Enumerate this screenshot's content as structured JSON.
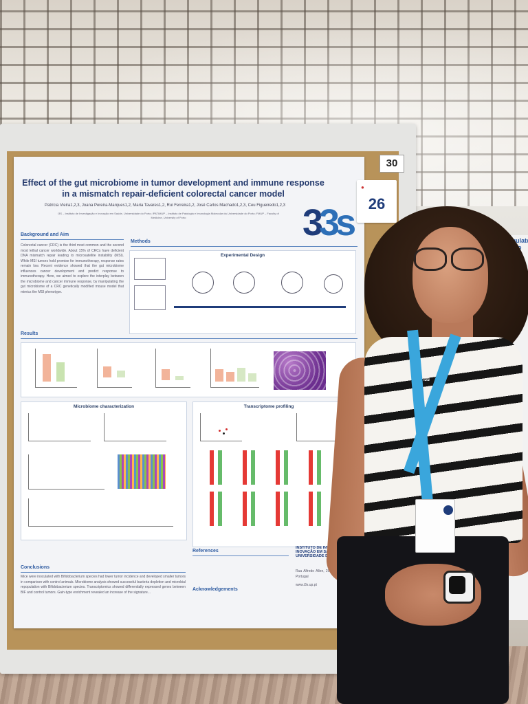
{
  "board": {
    "number": "30"
  },
  "sticker": {
    "number": "26"
  },
  "poster": {
    "title": "Effect of the gut microbiome in tumor development and immune response in a mismatch repair-deficient colorectal cancer model",
    "authors": "Patrícia Vieira1,2,3, Joana Pereira-Marques1,2, Maria Tavares1,2, Rui Ferreira1,2, José Carlos Machado1,2,3, Ceu Figueiredo1,2,3",
    "affiliations": "i3S – Instituto de Investigação e Inovação em Saúde, Universidade do Porto; IPATIMUP – Instituto de Patologia e Imunologia Molecular da Universidade do Porto; FMUP – Faculty of Medicine, University of Porto",
    "logo": "3s",
    "sections": {
      "background": "Background and Aim",
      "methods": "Methods",
      "experimental_design": "Experimental Design",
      "results": "Results",
      "microbiome": "Microbiome characterization",
      "transcriptome": "Transcriptome profiling",
      "references": "References",
      "conclusions": "Conclusions",
      "acknowledgements": "Acknowledgements"
    },
    "background_text": "Colorectal cancer (CRC) is the third most common and the second most lethal cancer worldwide. About 15% of CRCs have deficient DNA mismatch repair leading to microsatellite instability (MSI). While MSI tumors hold promise for immunotherapy, response rates remain low. Recent evidence showed that the gut microbiome influences cancer development and predict response to immunotherapy. Here, we aimed to explore the interplay between the microbiome and cancer immune response, by manipulating the gut microbiome of a CRC genetically modified mouse model that mimics the MSI phenotype.",
    "conclusions_text": "Mice were inoculated with Bifidobacterium species had lower tumor incidence and developed smaller tumors in comparison with control animals. Microbiome analysis showed successful bacteria depletion and microbial repopulation with Bifidobacterium species. Transcriptomics showed differentially expressed genes between BIF and control tumors. Gain-type enrichment revealed an increase of the signature...",
    "institution": "INSTITUTO DE INVESTIGAÇÃO E INOVAÇÃO EM SAÚDE UNIVERSIDADE DO PORTO",
    "address": "Rua Alfredo Allen, 208 4200-135 Porto Portugal",
    "website": "www.i3s.up.pt"
  },
  "badge": {
    "lanyard_text": "i3S"
  },
  "side_poster": {
    "heading": "Regulator in Pro"
  },
  "colors": {
    "title_blue": "#23396c",
    "section_blue": "#2d5aa0",
    "lanyard_blue": "#3aa6dc",
    "cork": "#b8935a"
  }
}
